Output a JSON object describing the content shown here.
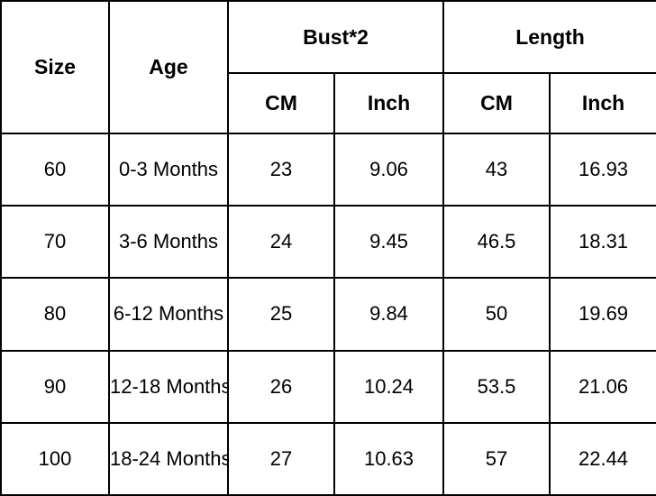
{
  "colors": {
    "border": "#000000",
    "background": "#ffffff",
    "text": "#000000"
  },
  "header": {
    "size": "Size",
    "age": "Age",
    "bust": "Bust*2",
    "length": "Length",
    "cm": "CM",
    "inch": "Inch"
  },
  "rows": [
    {
      "size": "60",
      "age": "0-3 Months",
      "bust_cm": "23",
      "bust_inch": "9.06",
      "length_cm": "43",
      "length_inch": "16.93"
    },
    {
      "size": "70",
      "age": "3-6 Months",
      "bust_cm": "24",
      "bust_inch": "9.45",
      "length_cm": "46.5",
      "length_inch": "18.31"
    },
    {
      "size": "80",
      "age": "6-12 Months",
      "bust_cm": "25",
      "bust_inch": "9.84",
      "length_cm": "50",
      "length_inch": "19.69"
    },
    {
      "size": "90",
      "age": "12-18 Months",
      "bust_cm": "26",
      "bust_inch": "10.24",
      "length_cm": "53.5",
      "length_inch": "21.06"
    },
    {
      "size": "100",
      "age": "18-24 Months",
      "bust_cm": "27",
      "bust_inch": "10.63",
      "length_cm": "57",
      "length_inch": "22.44"
    }
  ],
  "chart_data": {
    "type": "table",
    "title": "",
    "columns": [
      "Size",
      "Age",
      "Bust*2 CM",
      "Bust*2 Inch",
      "Length CM",
      "Length Inch"
    ],
    "column_groups": [
      {
        "label": "Size",
        "span": 1
      },
      {
        "label": "Age",
        "span": 1
      },
      {
        "label": "Bust*2",
        "span": 2,
        "sub": [
          "CM",
          "Inch"
        ]
      },
      {
        "label": "Length",
        "span": 2,
        "sub": [
          "CM",
          "Inch"
        ]
      }
    ],
    "rows": [
      [
        "60",
        "0-3 Months",
        23,
        9.06,
        43,
        16.93
      ],
      [
        "70",
        "3-6 Months",
        24,
        9.45,
        46.5,
        18.31
      ],
      [
        "80",
        "6-12 Months",
        25,
        9.84,
        50,
        19.69
      ],
      [
        "90",
        "12-18 Months",
        26,
        10.24,
        53.5,
        21.06
      ],
      [
        "100",
        "18-24 Months",
        27,
        10.63,
        57,
        22.44
      ]
    ]
  }
}
